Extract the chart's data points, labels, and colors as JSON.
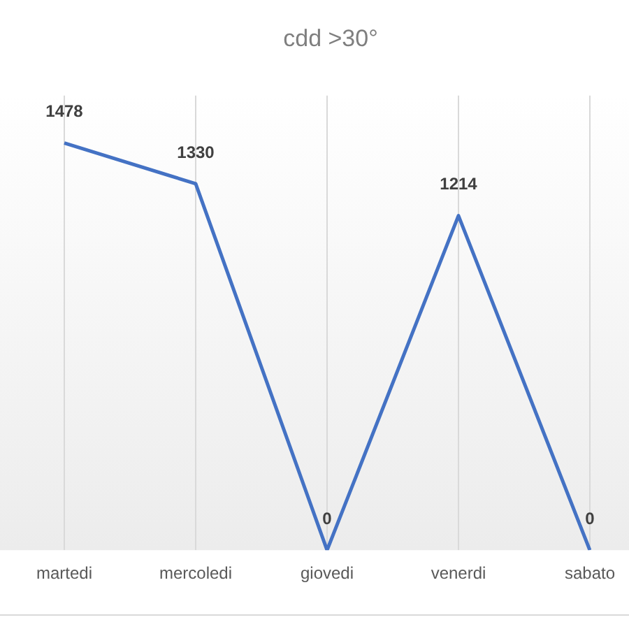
{
  "chart_data": {
    "type": "line",
    "title": "cdd >30°",
    "categories": [
      "martedi",
      "mercoledi",
      "giovedi",
      "venerdi",
      "sabato"
    ],
    "series": [
      {
        "color": "#4472c4",
        "values": [
          1478,
          1330,
          0,
          1214,
          0
        ]
      }
    ],
    "ylim": [
      0,
      1650
    ],
    "tick_labels": "x",
    "grid": "x",
    "marker": "none",
    "line_style": "solid",
    "legend": false,
    "data_labels": true
  }
}
